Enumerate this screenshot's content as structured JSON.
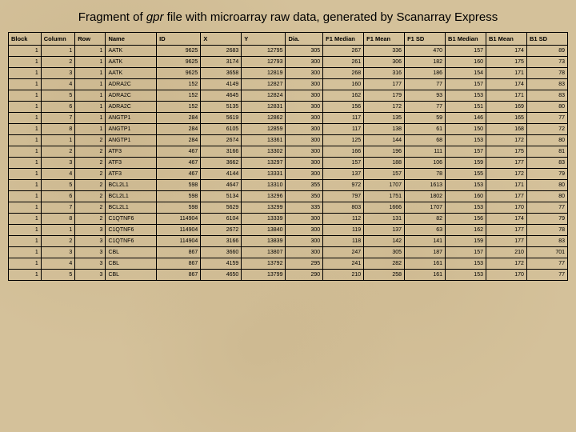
{
  "title_prefix": "Fragment of ",
  "title_em": "gpr",
  "title_suffix": " file with microarray raw data, generated by Scanarray Express",
  "table": {
    "type": "table",
    "background_color": "#d4c19a",
    "border_color": "#000000",
    "header_fontsize": 7.5,
    "cell_fontsize": 7,
    "text_color": "#000000",
    "columns": [
      "Block",
      "Column",
      "Row",
      "Name",
      "ID",
      "X",
      "Y",
      "Dia.",
      "F1 Median",
      "F1 Mean",
      "F1 SD",
      "B1 Median",
      "B1 Mean",
      "B1 SD"
    ],
    "col_align": [
      "right",
      "right",
      "right",
      "left",
      "right",
      "right",
      "right",
      "right",
      "right",
      "right",
      "right",
      "right",
      "right",
      "right"
    ],
    "rows": [
      [
        1,
        1,
        1,
        "AATK",
        9625,
        2683,
        12795,
        305,
        267,
        336,
        470,
        157,
        174,
        89
      ],
      [
        1,
        2,
        1,
        "AATK",
        9625,
        3174,
        12793,
        300,
        261,
        306,
        182,
        160,
        175,
        73
      ],
      [
        1,
        3,
        1,
        "AATK",
        9625,
        3658,
        12819,
        300,
        268,
        316,
        186,
        154,
        171,
        78
      ],
      [
        1,
        4,
        1,
        "ADRA2C",
        152,
        4149,
        12827,
        300,
        160,
        177,
        77,
        157,
        174,
        83
      ],
      [
        1,
        5,
        1,
        "ADRA2C",
        152,
        4645,
        12824,
        300,
        162,
        179,
        93,
        153,
        171,
        83
      ],
      [
        1,
        6,
        1,
        "ADRA2C",
        152,
        5135,
        12831,
        300,
        156,
        172,
        77,
        151,
        169,
        80
      ],
      [
        1,
        7,
        1,
        "ANGTP1",
        284,
        5619,
        12862,
        300,
        117,
        135,
        59,
        146,
        165,
        77
      ],
      [
        1,
        8,
        1,
        "ANGTP1",
        284,
        6105,
        12859,
        300,
        117,
        138,
        61,
        150,
        168,
        72
      ],
      [
        1,
        1,
        2,
        "ANGTP1",
        284,
        2674,
        13361,
        300,
        125,
        144,
        68,
        153,
        172,
        80
      ],
      [
        1,
        2,
        2,
        "ATF3",
        467,
        3166,
        13302,
        300,
        166,
        196,
        111,
        157,
        175,
        81
      ],
      [
        1,
        3,
        2,
        "ATF3",
        467,
        3662,
        13297,
        300,
        157,
        188,
        106,
        159,
        177,
        83
      ],
      [
        1,
        4,
        2,
        "ATF3",
        467,
        4144,
        13331,
        300,
        137,
        157,
        78,
        155,
        172,
        79
      ],
      [
        1,
        5,
        2,
        "BCL2L1",
        598,
        4647,
        13310,
        355,
        972,
        1707,
        1613,
        153,
        171,
        80
      ],
      [
        1,
        6,
        2,
        "BCL2L1",
        598,
        5134,
        13296,
        350,
        797,
        1751,
        1802,
        160,
        177,
        80
      ],
      [
        1,
        7,
        2,
        "BCL2L1",
        598,
        5629,
        13299,
        335,
        803,
        1666,
        1707,
        153,
        170,
        77
      ],
      [
        1,
        8,
        2,
        "C1QTNF6",
        114904,
        6104,
        13339,
        300,
        112,
        131,
        82,
        156,
        174,
        79
      ],
      [
        1,
        1,
        3,
        "C1QTNF6",
        114904,
        2672,
        13840,
        300,
        119,
        137,
        63,
        162,
        177,
        78
      ],
      [
        1,
        2,
        3,
        "C1QTNF6",
        114904,
        3166,
        13839,
        300,
        118,
        142,
        141,
        159,
        177,
        83
      ],
      [
        1,
        3,
        3,
        "CBL",
        867,
        3660,
        13807,
        300,
        247,
        305,
        187,
        157,
        210,
        701
      ],
      [
        1,
        4,
        3,
        "CBL",
        867,
        4159,
        13792,
        295,
        241,
        282,
        161,
        153,
        172,
        77
      ],
      [
        1,
        5,
        3,
        "CBL",
        867,
        4650,
        13799,
        290,
        210,
        258,
        161,
        153,
        170,
        77
      ]
    ]
  }
}
